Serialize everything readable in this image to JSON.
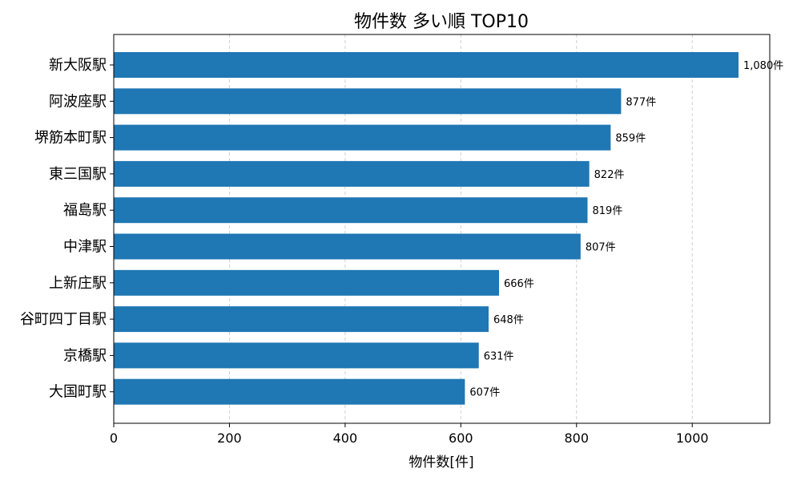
{
  "chart_data": {
    "type": "bar",
    "orientation": "horizontal",
    "title": "物件数 多い順 TOP10",
    "xlabel": "物件数[件]",
    "ylabel": "",
    "categories": [
      "新大阪駅",
      "阿波座駅",
      "堺筋本町駅",
      "東三国駅",
      "福島駅",
      "中津駅",
      "上新庄駅",
      "谷町四丁目駅",
      "京橋駅",
      "大国町駅"
    ],
    "values": [
      1080,
      877,
      859,
      822,
      819,
      807,
      666,
      648,
      631,
      607
    ],
    "data_labels": [
      "1,080件",
      "877件",
      "859件",
      "822件",
      "819件",
      "807件",
      "666件",
      "648件",
      "631件",
      "607件"
    ],
    "xlim": [
      0,
      1134
    ],
    "xticks": [
      0,
      200,
      400,
      600,
      800,
      1000
    ],
    "xtick_labels": [
      "0",
      "200",
      "400",
      "600",
      "800",
      "1000"
    ],
    "grid": "x-dashed",
    "bar_color": "#1f77b4"
  }
}
